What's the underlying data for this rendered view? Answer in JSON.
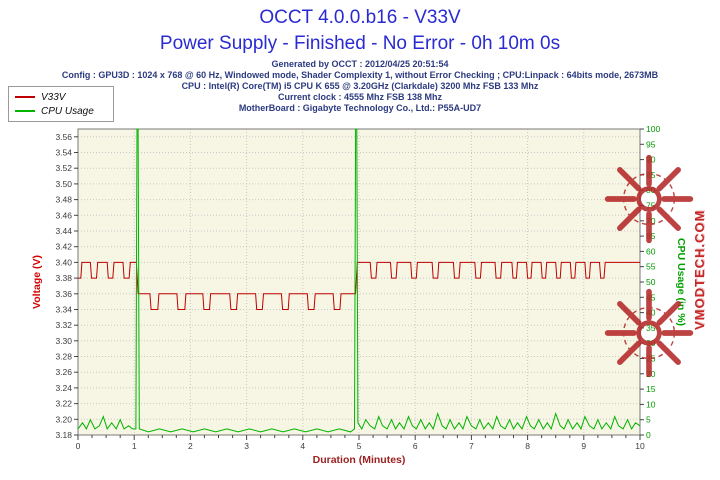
{
  "header": {
    "title": "OCCT 4.0.0.b16 - V33V",
    "subtitle": "Power Supply - Finished - No Error - 0h 10m 0s",
    "info_lines": [
      "Generated by OCCT : 2012/04/25 20:51:54",
      "Config : GPU3D : 1024 x 768 @ 60 Hz, Windowed mode, Shader Complexity 1, without Error Checking ; CPU:Linpack : 64bits mode, 2673MB",
      "CPU : Intel(R) Core(TM) i5 CPU K 655 @ 3.20GHz (Clarkdale) 3200 Mhz FSB 133 Mhz",
      "Current clock : 4555 Mhz FSB 138 Mhz",
      "MotherBoard : Gigabyte Technology Co., Ltd.: P55A-UD7"
    ]
  },
  "legend": {
    "items": [
      {
        "label": "V33V",
        "color": "#c00000"
      },
      {
        "label": "CPU Usage",
        "color": "#00b400"
      }
    ]
  },
  "watermark": {
    "text": "VMODTECH.COM",
    "color": "#c62828"
  },
  "chart_data": {
    "type": "line",
    "title": "OCCT 4.0.0.b16 - V33V",
    "xlabel": "Duration (Minutes)",
    "ylabel_left": "Voltage (V)",
    "ylabel_right": "CPU Usage (in %)",
    "xlim": [
      0,
      10
    ],
    "ylim_left": [
      3.18,
      3.57
    ],
    "ylim_right": [
      0,
      100
    ],
    "grid": "dotted",
    "legend_position": "top-left",
    "plot_bg": "#f7f5e3",
    "x_ticks": [
      0,
      1,
      2,
      3,
      4,
      5,
      6,
      7,
      8,
      9,
      10
    ],
    "y_left_ticks": [
      3.18,
      3.2,
      3.22,
      3.24,
      3.26,
      3.28,
      3.3,
      3.32,
      3.34,
      3.36,
      3.38,
      3.4,
      3.42,
      3.44,
      3.46,
      3.48,
      3.5,
      3.52,
      3.54,
      3.56
    ],
    "y_right_ticks": [
      0,
      5,
      10,
      15,
      20,
      25,
      30,
      35,
      40,
      45,
      50,
      55,
      60,
      65,
      70,
      75,
      80,
      85,
      90,
      95,
      100
    ],
    "series": [
      {
        "name": "V33V",
        "axis": "left",
        "color": "#c00000",
        "points": [
          [
            0.0,
            3.38
          ],
          [
            0.05,
            3.38
          ],
          [
            0.07,
            3.4
          ],
          [
            0.22,
            3.4
          ],
          [
            0.24,
            3.38
          ],
          [
            0.33,
            3.38
          ],
          [
            0.35,
            3.4
          ],
          [
            0.52,
            3.4
          ],
          [
            0.54,
            3.38
          ],
          [
            0.62,
            3.38
          ],
          [
            0.64,
            3.4
          ],
          [
            0.8,
            3.4
          ],
          [
            0.82,
            3.38
          ],
          [
            0.91,
            3.38
          ],
          [
            0.93,
            3.4
          ],
          [
            1.04,
            3.4
          ],
          [
            1.07,
            3.36
          ],
          [
            1.28,
            3.36
          ],
          [
            1.3,
            3.34
          ],
          [
            1.42,
            3.34
          ],
          [
            1.44,
            3.36
          ],
          [
            1.76,
            3.36
          ],
          [
            1.78,
            3.34
          ],
          [
            1.9,
            3.34
          ],
          [
            1.92,
            3.36
          ],
          [
            2.22,
            3.36
          ],
          [
            2.24,
            3.34
          ],
          [
            2.34,
            3.34
          ],
          [
            2.36,
            3.36
          ],
          [
            2.7,
            3.36
          ],
          [
            2.72,
            3.34
          ],
          [
            2.82,
            3.34
          ],
          [
            2.84,
            3.36
          ],
          [
            3.16,
            3.36
          ],
          [
            3.18,
            3.34
          ],
          [
            3.28,
            3.34
          ],
          [
            3.3,
            3.36
          ],
          [
            3.62,
            3.36
          ],
          [
            3.64,
            3.34
          ],
          [
            3.74,
            3.34
          ],
          [
            3.76,
            3.36
          ],
          [
            4.08,
            3.36
          ],
          [
            4.1,
            3.34
          ],
          [
            4.2,
            3.34
          ],
          [
            4.22,
            3.36
          ],
          [
            4.54,
            3.36
          ],
          [
            4.56,
            3.34
          ],
          [
            4.66,
            3.34
          ],
          [
            4.68,
            3.36
          ],
          [
            4.94,
            3.36
          ],
          [
            4.97,
            3.4
          ],
          [
            5.2,
            3.4
          ],
          [
            5.22,
            3.38
          ],
          [
            5.3,
            3.38
          ],
          [
            5.32,
            3.4
          ],
          [
            5.56,
            3.4
          ],
          [
            5.58,
            3.38
          ],
          [
            5.66,
            3.38
          ],
          [
            5.68,
            3.4
          ],
          [
            5.92,
            3.4
          ],
          [
            5.94,
            3.38
          ],
          [
            6.02,
            3.38
          ],
          [
            6.04,
            3.4
          ],
          [
            6.3,
            3.4
          ],
          [
            6.32,
            3.38
          ],
          [
            6.4,
            3.38
          ],
          [
            6.42,
            3.4
          ],
          [
            6.68,
            3.4
          ],
          [
            6.7,
            3.38
          ],
          [
            6.78,
            3.38
          ],
          [
            6.8,
            3.4
          ],
          [
            7.06,
            3.4
          ],
          [
            7.08,
            3.38
          ],
          [
            7.16,
            3.38
          ],
          [
            7.18,
            3.4
          ],
          [
            7.42,
            3.4
          ],
          [
            7.44,
            3.38
          ],
          [
            7.52,
            3.38
          ],
          [
            7.54,
            3.4
          ],
          [
            7.72,
            3.4
          ],
          [
            7.74,
            3.38
          ],
          [
            7.8,
            3.38
          ],
          [
            7.82,
            3.4
          ],
          [
            7.98,
            3.4
          ],
          [
            8.0,
            3.38
          ],
          [
            8.06,
            3.38
          ],
          [
            8.08,
            3.4
          ],
          [
            8.24,
            3.4
          ],
          [
            8.26,
            3.38
          ],
          [
            8.32,
            3.38
          ],
          [
            8.34,
            3.4
          ],
          [
            8.5,
            3.4
          ],
          [
            8.52,
            3.38
          ],
          [
            8.58,
            3.38
          ],
          [
            8.6,
            3.4
          ],
          [
            8.76,
            3.4
          ],
          [
            8.78,
            3.38
          ],
          [
            8.84,
            3.38
          ],
          [
            8.86,
            3.4
          ],
          [
            9.02,
            3.4
          ],
          [
            9.04,
            3.38
          ],
          [
            9.1,
            3.38
          ],
          [
            9.12,
            3.4
          ],
          [
            9.28,
            3.4
          ],
          [
            9.3,
            3.38
          ],
          [
            9.36,
            3.38
          ],
          [
            9.38,
            3.4
          ],
          [
            10.0,
            3.4
          ]
        ]
      },
      {
        "name": "CPU Usage",
        "axis": "right",
        "color": "#00b400",
        "points": [
          [
            0.0,
            2
          ],
          [
            0.08,
            4
          ],
          [
            0.15,
            2
          ],
          [
            0.22,
            5
          ],
          [
            0.3,
            2
          ],
          [
            0.38,
            3
          ],
          [
            0.45,
            6
          ],
          [
            0.52,
            2
          ],
          [
            0.6,
            4
          ],
          [
            0.68,
            2
          ],
          [
            0.75,
            5
          ],
          [
            0.82,
            2
          ],
          [
            0.9,
            3
          ],
          [
            0.97,
            2
          ],
          [
            1.03,
            2
          ],
          [
            1.05,
            100
          ],
          [
            1.07,
            100
          ],
          [
            1.09,
            2
          ],
          [
            1.25,
            1
          ],
          [
            1.45,
            2
          ],
          [
            1.65,
            1
          ],
          [
            1.85,
            2
          ],
          [
            2.05,
            1
          ],
          [
            2.25,
            2
          ],
          [
            2.45,
            1
          ],
          [
            2.65,
            2
          ],
          [
            2.85,
            1
          ],
          [
            3.05,
            2
          ],
          [
            3.25,
            1
          ],
          [
            3.45,
            2
          ],
          [
            3.65,
            1
          ],
          [
            3.85,
            2
          ],
          [
            4.05,
            1
          ],
          [
            4.25,
            2
          ],
          [
            4.45,
            1
          ],
          [
            4.65,
            2
          ],
          [
            4.85,
            1
          ],
          [
            4.92,
            2
          ],
          [
            4.94,
            100
          ],
          [
            4.96,
            100
          ],
          [
            4.98,
            4
          ],
          [
            5.05,
            2
          ],
          [
            5.12,
            5
          ],
          [
            5.2,
            3
          ],
          [
            5.28,
            2
          ],
          [
            5.35,
            6
          ],
          [
            5.42,
            3
          ],
          [
            5.5,
            2
          ],
          [
            5.58,
            5
          ],
          [
            5.65,
            2
          ],
          [
            5.72,
            4
          ],
          [
            5.8,
            2
          ],
          [
            5.88,
            6
          ],
          [
            5.95,
            3
          ],
          [
            6.02,
            2
          ],
          [
            6.1,
            5
          ],
          [
            6.18,
            2
          ],
          [
            6.25,
            4
          ],
          [
            6.32,
            2
          ],
          [
            6.4,
            7
          ],
          [
            6.48,
            3
          ],
          [
            6.55,
            2
          ],
          [
            6.62,
            5
          ],
          [
            6.7,
            2
          ],
          [
            6.78,
            4
          ],
          [
            6.85,
            2
          ],
          [
            6.92,
            6
          ],
          [
            7.0,
            3
          ],
          [
            7.08,
            2
          ],
          [
            7.15,
            5
          ],
          [
            7.22,
            2
          ],
          [
            7.3,
            4
          ],
          [
            7.38,
            2
          ],
          [
            7.45,
            6
          ],
          [
            7.52,
            3
          ],
          [
            7.6,
            2
          ],
          [
            7.68,
            5
          ],
          [
            7.75,
            2
          ],
          [
            7.82,
            4
          ],
          [
            7.9,
            2
          ],
          [
            7.98,
            6
          ],
          [
            8.05,
            3
          ],
          [
            8.12,
            2
          ],
          [
            8.2,
            5
          ],
          [
            8.28,
            2
          ],
          [
            8.35,
            4
          ],
          [
            8.42,
            2
          ],
          [
            8.5,
            7
          ],
          [
            8.58,
            3
          ],
          [
            8.65,
            2
          ],
          [
            8.72,
            5
          ],
          [
            8.8,
            2
          ],
          [
            8.88,
            4
          ],
          [
            8.95,
            2
          ],
          [
            9.02,
            6
          ],
          [
            9.1,
            3
          ],
          [
            9.18,
            2
          ],
          [
            9.25,
            5
          ],
          [
            9.32,
            2
          ],
          [
            9.4,
            4
          ],
          [
            9.48,
            2
          ],
          [
            9.55,
            6
          ],
          [
            9.62,
            3
          ],
          [
            9.7,
            2
          ],
          [
            9.78,
            5
          ],
          [
            9.85,
            2
          ],
          [
            9.92,
            4
          ],
          [
            10.0,
            3
          ]
        ]
      }
    ]
  }
}
